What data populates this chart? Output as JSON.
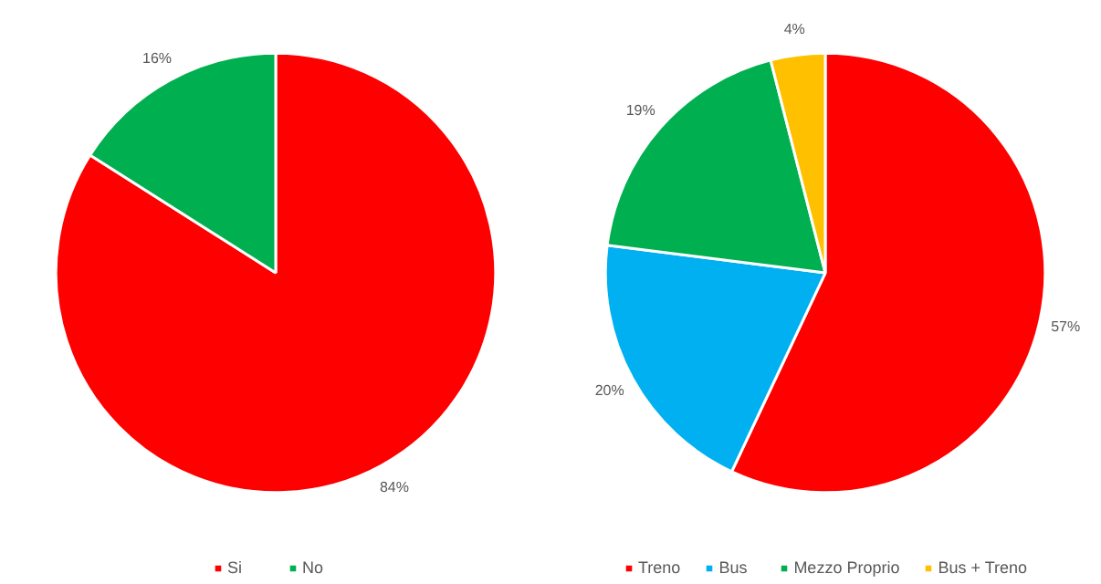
{
  "chart_data": [
    {
      "type": "pie",
      "categories": [
        "Si",
        "No"
      ],
      "values": [
        84,
        16
      ],
      "colors": [
        "#ff0000",
        "#00b050"
      ],
      "value_labels": [
        "84%",
        "16%"
      ],
      "legend": "bottom"
    },
    {
      "type": "pie",
      "categories": [
        "Treno",
        "Bus",
        "Mezzo Proprio",
        "Bus + Treno"
      ],
      "values": [
        57,
        20,
        19,
        4
      ],
      "colors": [
        "#ff0000",
        "#00b0f0",
        "#00b050",
        "#ffc000"
      ],
      "value_labels": [
        "57%",
        "20%",
        "19%",
        "4%"
      ],
      "legend": "bottom"
    }
  ]
}
